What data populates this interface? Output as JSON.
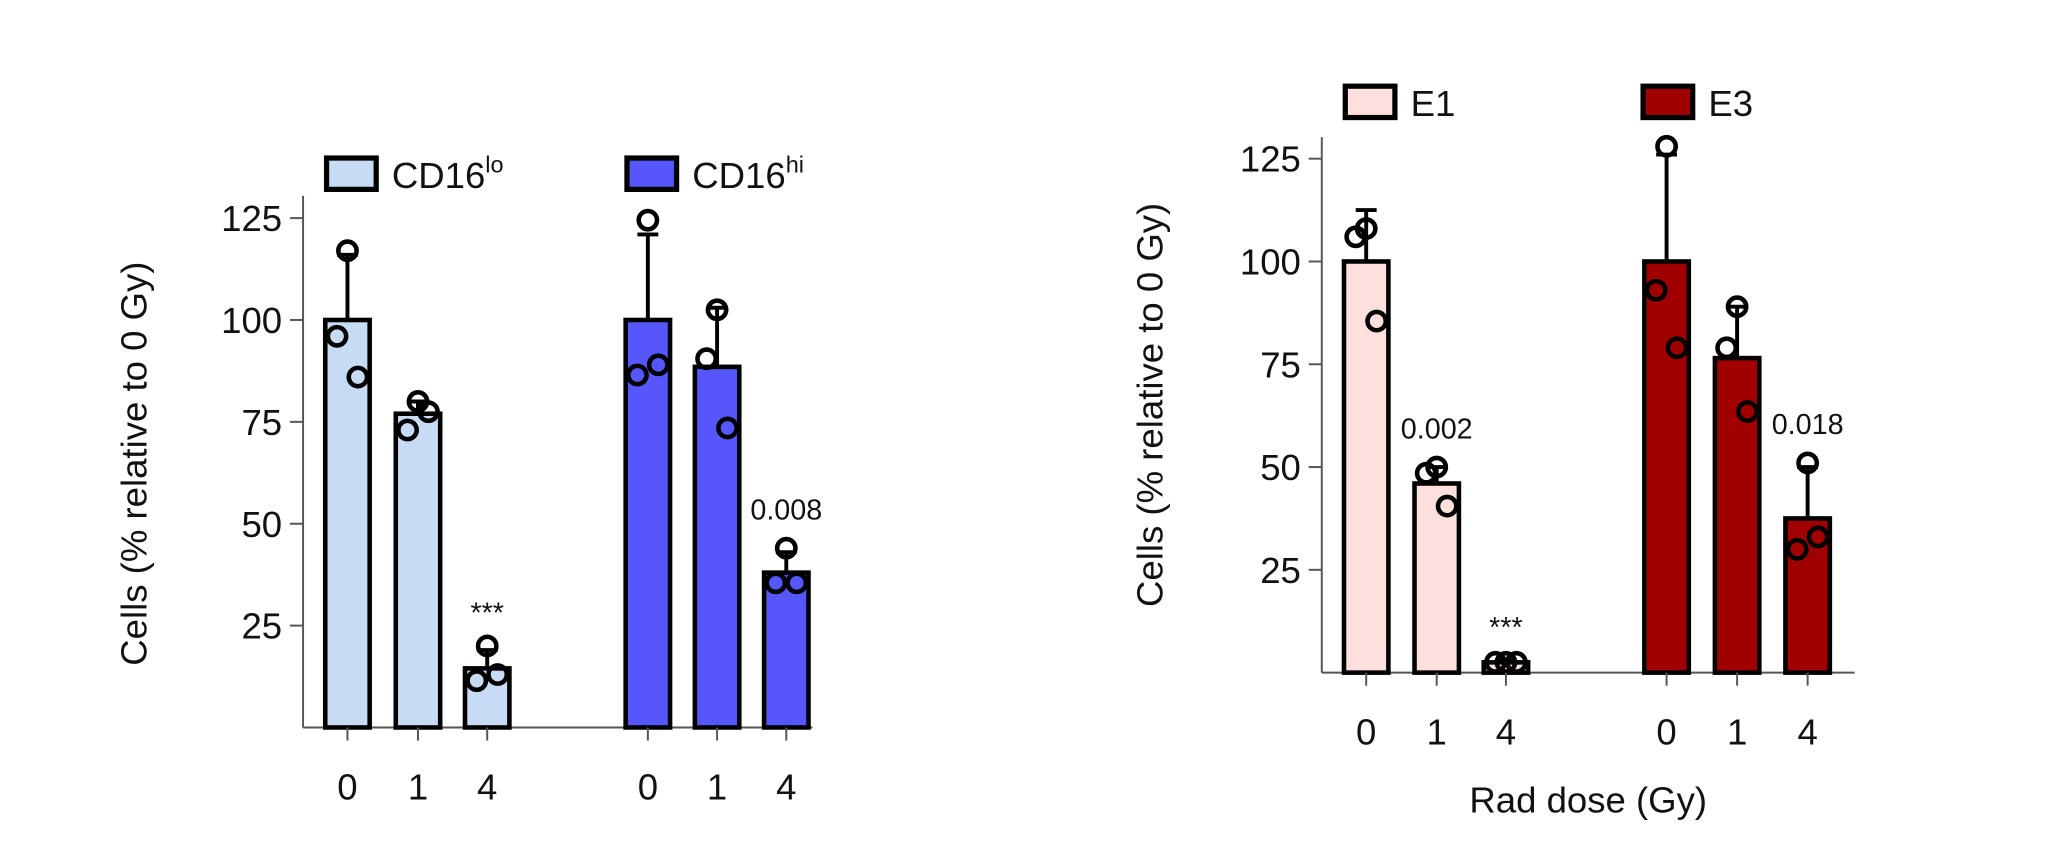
{
  "chart_data": [
    {
      "type": "bar",
      "ylabel": "Cells (% relative to 0 Gy)",
      "xlabel": "",
      "ylim": [
        0,
        130
      ],
      "yticks": [
        25,
        50,
        75,
        100,
        125
      ],
      "legend_position": "top",
      "grid": false,
      "series": [
        {
          "name": "CD16",
          "name_sup": "lo",
          "color": "#c7dcf4",
          "categories": [
            "0",
            "1",
            "4"
          ],
          "values": [
            100,
            77,
            14.5
          ],
          "error_upper": [
            116,
            80,
            19
          ],
          "points": [
            [
              117,
              96,
              86
            ],
            [
              80,
              73,
              77.5
            ],
            [
              20,
              11.5,
              13
            ]
          ],
          "annotations": [
            "",
            "",
            "***"
          ]
        },
        {
          "name": "CD16",
          "name_sup": "hi",
          "color": "#5557fa",
          "categories": [
            "0",
            "1",
            "4"
          ],
          "values": [
            100,
            88.5,
            38
          ],
          "error_upper": [
            121,
            103,
            43
          ],
          "points": [
            [
              124.5,
              86.5,
              89
            ],
            [
              102.5,
              90.5,
              73.5
            ],
            [
              44,
              35.5,
              35.5
            ]
          ],
          "annotations": [
            "",
            "",
            "0.008"
          ]
        }
      ]
    },
    {
      "type": "bar",
      "ylabel": "Cells (% relative to 0 Gy)",
      "xlabel": "Rad dose (Gy)",
      "ylim": [
        0,
        130
      ],
      "yticks": [
        25,
        50,
        75,
        100,
        125
      ],
      "legend_position": "top",
      "grid": false,
      "series": [
        {
          "name": "E1",
          "name_sup": "",
          "color": "#fde0de",
          "categories": [
            "0",
            "1",
            "4"
          ],
          "values": [
            100,
            46,
            2.5
          ],
          "error_upper": [
            112.5,
            50,
            3
          ],
          "points": [
            [
              108,
              106,
              85.5
            ],
            [
              50,
              48.5,
              40.5
            ],
            [
              2.5,
              2.5,
              2.5
            ]
          ],
          "annotations": [
            "",
            "0.002",
            "***"
          ]
        },
        {
          "name": "E3",
          "name_sup": "",
          "color": "#a00000",
          "categories": [
            "0",
            "1",
            "4"
          ],
          "values": [
            100,
            76.5,
            37.5
          ],
          "error_upper": [
            126,
            89,
            50
          ],
          "points": [
            [
              128,
              93,
              79
            ],
            [
              89,
              79,
              63.5
            ],
            [
              51,
              30,
              33
            ]
          ],
          "annotations": [
            "",
            "",
            "0.018"
          ]
        }
      ]
    }
  ]
}
